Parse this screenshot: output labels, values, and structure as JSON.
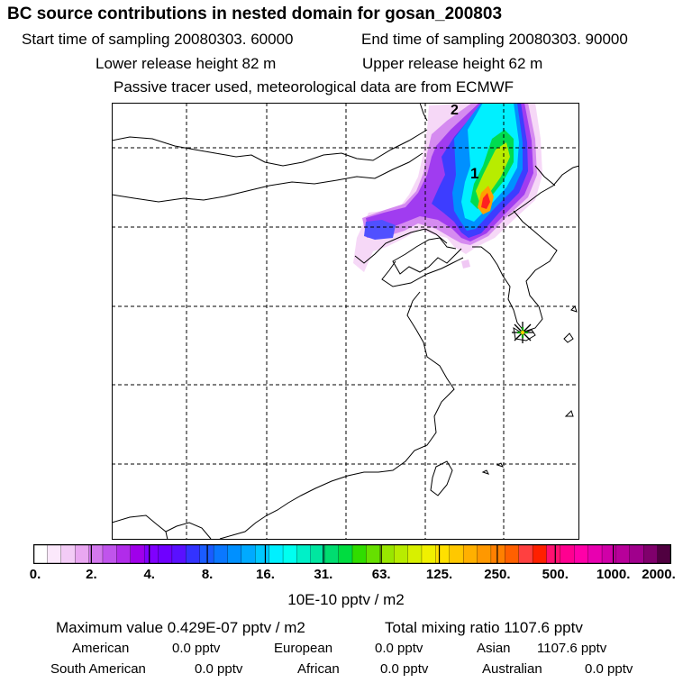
{
  "header": {
    "title": "BC  source contributions in nested domain for gosan_200803",
    "start_time": "Start time of sampling 20080303. 60000",
    "end_time": "End time of sampling 20080303. 90000",
    "lower_release": "Lower release height   82 m",
    "upper_release": "Upper release height   62 m",
    "note": "Passive tracer used, meteorological data are from ECMWF"
  },
  "chart_data": {
    "type": "heatmap",
    "title": "BC  source contributions in nested domain for gosan_200803",
    "grid": true,
    "contour_labels": [
      "2",
      "1"
    ],
    "receptor": "gosan",
    "colorbar": {
      "tick_labels": [
        "0.",
        "2.",
        "4.",
        "8.",
        "16.",
        "31.",
        "63.",
        "125.",
        "250.",
        "500.",
        "1000.",
        "2000."
      ],
      "unit_label": "10E-10 pptv / m2",
      "colors": [
        "#ffffff",
        "#fbe8fb",
        "#f3ccf6",
        "#e9a7f1",
        "#d378ee",
        "#c054ec",
        "#b12cea",
        "#a000ea",
        "#8000ff",
        "#6f00ff",
        "#5a10ff",
        "#3333ff",
        "#1a5cff",
        "#0a78ff",
        "#0090ff",
        "#00aaff",
        "#00c8ff",
        "#00f0ff",
        "#00fff0",
        "#00f0c8",
        "#00e6a0",
        "#00dd70",
        "#00dc40",
        "#30dd00",
        "#66e000",
        "#99e600",
        "#b8ec00",
        "#d8f000",
        "#f0f000",
        "#ffe000",
        "#ffc800",
        "#ffb000",
        "#ff9800",
        "#ff8000",
        "#ff6000",
        "#ff4040",
        "#ff2000",
        "#ff1070",
        "#ff0090",
        "#ff00a8",
        "#e800b0",
        "#d000a8",
        "#b8009a",
        "#a0008c",
        "#80006c",
        "#500040"
      ]
    }
  },
  "footer": {
    "max_value": "Maximum value  0.429E-07 pptv / m2",
    "total_mixing": "Total mixing ratio     1107.6 pptv",
    "american_label": "American",
    "american_value": "0.0 pptv",
    "european_label": "European",
    "european_value": "0.0 pptv",
    "asian_label": "Asian",
    "asian_value": "1107.6 pptv",
    "southam_label": "South American",
    "southam_value": "0.0 pptv",
    "african_label": "African",
    "african_value": "0.0 pptv",
    "australian_label": "Australian",
    "australian_value": "0.0 pptv"
  }
}
